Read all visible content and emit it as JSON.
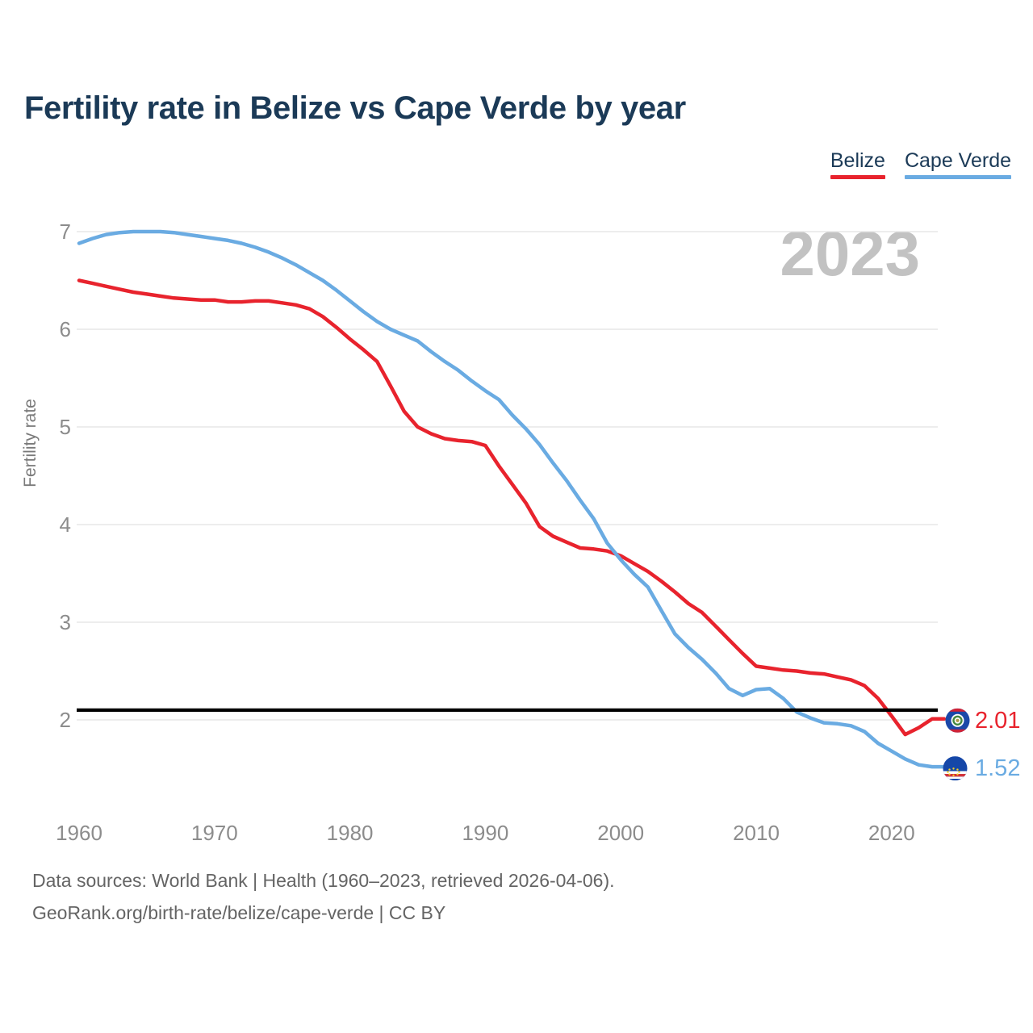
{
  "title": "Fertility rate in Belize vs Cape Verde by year",
  "watermark": "2023",
  "legend": {
    "items": [
      {
        "label": "Belize",
        "color": "#e8232d"
      },
      {
        "label": "Cape Verde",
        "color": "#6aabe2"
      }
    ]
  },
  "footer": {
    "line1": "Data sources: World Bank | Health (1960–2023, retrieved 2026-04-06).",
    "line2": "GeoRank.org/birth-rate/belize/cape-verde | CC BY"
  },
  "chart_data": {
    "type": "line",
    "title": "Fertility rate in Belize vs Cape Verde by year",
    "xlabel": "",
    "ylabel": "Fertility rate",
    "xlim": [
      1960,
      2023
    ],
    "ylim": [
      1.4,
      7.1
    ],
    "grid": "horizontal",
    "legend_position": "top-right",
    "x_ticks": [
      1960,
      1970,
      1980,
      1990,
      2000,
      2010,
      2020
    ],
    "y_ticks": [
      7,
      6,
      5,
      4,
      3,
      2
    ],
    "replacement_line": {
      "value": 2.1,
      "color": "#000000"
    },
    "years": [
      1960,
      1961,
      1962,
      1963,
      1964,
      1965,
      1966,
      1967,
      1968,
      1969,
      1970,
      1971,
      1972,
      1973,
      1974,
      1975,
      1976,
      1977,
      1978,
      1979,
      1980,
      1981,
      1982,
      1983,
      1984,
      1985,
      1986,
      1987,
      1988,
      1989,
      1990,
      1991,
      1992,
      1993,
      1994,
      1995,
      1996,
      1997,
      1998,
      1999,
      2000,
      2001,
      2002,
      2003,
      2004,
      2005,
      2006,
      2007,
      2008,
      2009,
      2010,
      2011,
      2012,
      2013,
      2014,
      2015,
      2016,
      2017,
      2018,
      2019,
      2020,
      2021,
      2022,
      2023
    ],
    "series": [
      {
        "name": "Belize",
        "color": "#e8232d",
        "icon": "belize-flag-icon",
        "final_value_label": "2.01",
        "values": [
          6.5,
          6.47,
          6.44,
          6.41,
          6.38,
          6.36,
          6.34,
          6.32,
          6.31,
          6.3,
          6.3,
          6.28,
          6.28,
          6.29,
          6.29,
          6.27,
          6.25,
          6.21,
          6.13,
          6.02,
          5.9,
          5.79,
          5.67,
          5.42,
          5.16,
          5.0,
          4.93,
          4.88,
          4.86,
          4.85,
          4.81,
          4.6,
          4.41,
          4.22,
          3.98,
          3.88,
          3.82,
          3.76,
          3.75,
          3.73,
          3.68,
          3.6,
          3.52,
          3.42,
          3.31,
          3.19,
          3.1,
          2.96,
          2.82,
          2.68,
          2.55,
          2.53,
          2.51,
          2.5,
          2.48,
          2.47,
          2.44,
          2.41,
          2.35,
          2.22,
          2.04,
          1.85,
          1.92,
          2.01
        ]
      },
      {
        "name": "Cape Verde",
        "color": "#6aabe2",
        "icon": "cape-verde-flag-icon",
        "final_value_label": "1.52",
        "values": [
          6.88,
          6.93,
          6.97,
          6.99,
          7.0,
          7.0,
          7.0,
          6.99,
          6.97,
          6.95,
          6.93,
          6.91,
          6.88,
          6.84,
          6.79,
          6.73,
          6.66,
          6.58,
          6.5,
          6.4,
          6.29,
          6.18,
          6.08,
          6.0,
          5.94,
          5.88,
          5.77,
          5.67,
          5.58,
          5.47,
          5.37,
          5.28,
          5.12,
          4.98,
          4.82,
          4.63,
          4.45,
          4.25,
          4.06,
          3.81,
          3.64,
          3.49,
          3.36,
          3.12,
          2.88,
          2.74,
          2.62,
          2.48,
          2.32,
          2.25,
          2.31,
          2.32,
          2.22,
          2.08,
          2.02,
          1.97,
          1.96,
          1.94,
          1.88,
          1.76,
          1.68,
          1.6,
          1.54,
          1.52
        ]
      }
    ]
  }
}
